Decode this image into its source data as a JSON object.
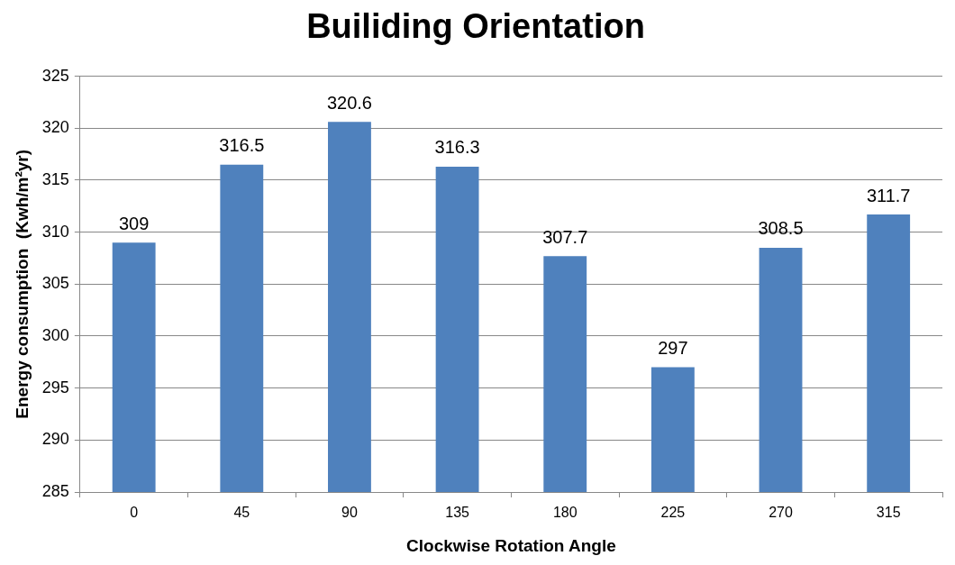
{
  "chart_data": {
    "type": "bar",
    "title": "Builiding Orientation",
    "xlabel": "Clockwise Rotation Angle",
    "ylabel": "Energy consumption  (Kwh/m²yr)",
    "categories": [
      "0",
      "45",
      "90",
      "135",
      "180",
      "225",
      "270",
      "315"
    ],
    "values": [
      309,
      316.5,
      320.6,
      316.3,
      307.7,
      297,
      308.5,
      311.7
    ],
    "color": "#4f81bd",
    "ylim": [
      285,
      325
    ],
    "yticks": [
      285,
      290,
      295,
      300,
      305,
      310,
      315,
      320,
      325
    ],
    "grid": "y",
    "data_labels": true,
    "legend": false
  }
}
